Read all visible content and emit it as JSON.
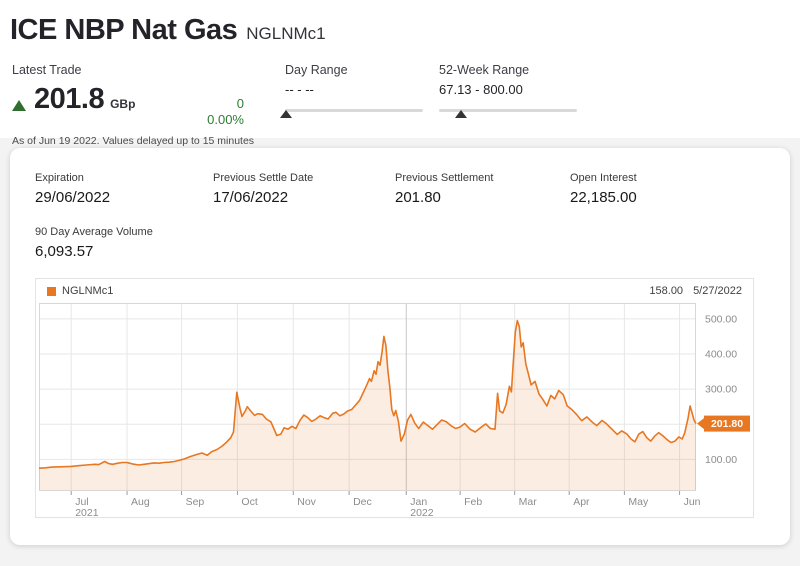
{
  "header": {
    "title": "ICE NBP Nat Gas",
    "ric": "NGLNMc1",
    "latest_trade": {
      "label": "Latest Trade",
      "direction": "up",
      "price": "201.8",
      "currency": "GBp",
      "change": "0",
      "change_pct": "0.00%",
      "as_of": "As of Jun 19 2022. Values delayed up to 15 minutes",
      "up_color": "#2e7d32"
    },
    "day_range": {
      "label": "Day Range",
      "value": "-- - --",
      "marker_pct": 1
    },
    "week52_range": {
      "label": "52-Week Range",
      "value": "67.13 - 800.00",
      "marker_pct": 16
    }
  },
  "details": {
    "fields": [
      {
        "label": "Expiration",
        "value": "29/06/2022"
      },
      {
        "label": "Previous Settle Date",
        "value": "17/06/2022"
      },
      {
        "label": "Previous Settlement",
        "value": "201.80"
      },
      {
        "label": "Open Interest",
        "value": "22,185.00"
      },
      {
        "label": "90 Day Average Volume",
        "value": "6,093.57"
      }
    ]
  },
  "chart": {
    "legend": "NGLNMc1",
    "header_value": "158.00",
    "header_date": "5/27/2022",
    "last_price_label": "201.80",
    "colors": {
      "line": "#e87722",
      "fill": "rgba(232,119,34,0.13)",
      "grid": "#e7e7e7",
      "grid_emph": "#c6c6c6",
      "axis_text": "#8c8c8c",
      "tick": "#9a9a9a",
      "plot_border": "#d8d8d8",
      "tag_bg": "#e87722",
      "tag_text": "#ffffff"
    }
  },
  "chart_data": {
    "type": "area",
    "title": "NGLNMc1 continuation price, Jun 2021 - Jun 2022",
    "ylabel": "GBp",
    "ylim": [
      10,
      545
    ],
    "grid": true,
    "legend_position": "top-left",
    "gridlines_y": [
      100,
      200,
      300,
      400,
      500
    ],
    "yticks_labeled": [
      {
        "v": 500,
        "label": "500.00"
      },
      {
        "v": 400,
        "label": "400.00"
      },
      {
        "v": 300,
        "label": "300.00"
      },
      {
        "v": 100,
        "label": "100.00"
      }
    ],
    "x_months": [
      {
        "f": 0.049,
        "label": "Jul",
        "sub": "2021"
      },
      {
        "f": 0.134,
        "label": "Aug"
      },
      {
        "f": 0.217,
        "label": "Sep"
      },
      {
        "f": 0.302,
        "label": "Oct"
      },
      {
        "f": 0.387,
        "label": "Nov"
      },
      {
        "f": 0.472,
        "label": "Dec"
      },
      {
        "f": 0.559,
        "label": "Jan",
        "sub": "2022",
        "emph": true
      },
      {
        "f": 0.641,
        "label": "Feb"
      },
      {
        "f": 0.724,
        "label": "Mar"
      },
      {
        "f": 0.807,
        "label": "Apr"
      },
      {
        "f": 0.891,
        "label": "May"
      },
      {
        "f": 0.975,
        "label": "Jun"
      }
    ],
    "last_value": 201.8,
    "series": [
      {
        "name": "NGLNMc1",
        "unit": "GBp",
        "points": [
          [
            0.0,
            75
          ],
          [
            0.01,
            76
          ],
          [
            0.02,
            78
          ],
          [
            0.033,
            79
          ],
          [
            0.049,
            80
          ],
          [
            0.06,
            82
          ],
          [
            0.072,
            84
          ],
          [
            0.085,
            86
          ],
          [
            0.091,
            85
          ],
          [
            0.1,
            94
          ],
          [
            0.106,
            88
          ],
          [
            0.112,
            86
          ],
          [
            0.12,
            89
          ],
          [
            0.127,
            91
          ],
          [
            0.134,
            91
          ],
          [
            0.142,
            87
          ],
          [
            0.152,
            84
          ],
          [
            0.16,
            86
          ],
          [
            0.168,
            88
          ],
          [
            0.175,
            90
          ],
          [
            0.183,
            89
          ],
          [
            0.19,
            91
          ],
          [
            0.198,
            92
          ],
          [
            0.206,
            94
          ],
          [
            0.213,
            97
          ],
          [
            0.221,
            101
          ],
          [
            0.23,
            108
          ],
          [
            0.24,
            114
          ],
          [
            0.248,
            118
          ],
          [
            0.256,
            112
          ],
          [
            0.263,
            122
          ],
          [
            0.271,
            128
          ],
          [
            0.279,
            138
          ],
          [
            0.286,
            150
          ],
          [
            0.292,
            162
          ],
          [
            0.296,
            178
          ],
          [
            0.301,
            291
          ],
          [
            0.306,
            245
          ],
          [
            0.309,
            222
          ],
          [
            0.314,
            238
          ],
          [
            0.317,
            250
          ],
          [
            0.322,
            238
          ],
          [
            0.328,
            225
          ],
          [
            0.333,
            230
          ],
          [
            0.34,
            228
          ],
          [
            0.346,
            215
          ],
          [
            0.353,
            207
          ],
          [
            0.358,
            185
          ],
          [
            0.362,
            168
          ],
          [
            0.368,
            172
          ],
          [
            0.373,
            190
          ],
          [
            0.379,
            186
          ],
          [
            0.385,
            194
          ],
          [
            0.391,
            188
          ],
          [
            0.397,
            210
          ],
          [
            0.403,
            226
          ],
          [
            0.409,
            219
          ],
          [
            0.415,
            208
          ],
          [
            0.421,
            214
          ],
          [
            0.428,
            224
          ],
          [
            0.434,
            219
          ],
          [
            0.44,
            215
          ],
          [
            0.447,
            231
          ],
          [
            0.452,
            234
          ],
          [
            0.458,
            224
          ],
          [
            0.464,
            229
          ],
          [
            0.47,
            238
          ],
          [
            0.476,
            242
          ],
          [
            0.482,
            255
          ],
          [
            0.488,
            268
          ],
          [
            0.494,
            292
          ],
          [
            0.499,
            312
          ],
          [
            0.503,
            330
          ],
          [
            0.506,
            322
          ],
          [
            0.51,
            352
          ],
          [
            0.513,
            342
          ],
          [
            0.516,
            378
          ],
          [
            0.519,
            368
          ],
          [
            0.522,
            404
          ],
          [
            0.525,
            450
          ],
          [
            0.528,
            424
          ],
          [
            0.531,
            352
          ],
          [
            0.534,
            306
          ],
          [
            0.537,
            242
          ],
          [
            0.54,
            224
          ],
          [
            0.543,
            239
          ],
          [
            0.547,
            208
          ],
          [
            0.551,
            152
          ],
          [
            0.556,
            172
          ],
          [
            0.561,
            212
          ],
          [
            0.566,
            228
          ],
          [
            0.572,
            203
          ],
          [
            0.578,
            188
          ],
          [
            0.585,
            206
          ],
          [
            0.592,
            196
          ],
          [
            0.599,
            186
          ],
          [
            0.606,
            199
          ],
          [
            0.613,
            212
          ],
          [
            0.62,
            207
          ],
          [
            0.627,
            196
          ],
          [
            0.634,
            188
          ],
          [
            0.641,
            192
          ],
          [
            0.648,
            202
          ],
          [
            0.656,
            186
          ],
          [
            0.664,
            178
          ],
          [
            0.672,
            190
          ],
          [
            0.68,
            201
          ],
          [
            0.687,
            188
          ],
          [
            0.694,
            186
          ],
          [
            0.698,
            288
          ],
          [
            0.701,
            238
          ],
          [
            0.706,
            232
          ],
          [
            0.711,
            256
          ],
          [
            0.716,
            308
          ],
          [
            0.719,
            292
          ],
          [
            0.722,
            382
          ],
          [
            0.725,
            462
          ],
          [
            0.728,
            495
          ],
          [
            0.731,
            478
          ],
          [
            0.734,
            420
          ],
          [
            0.737,
            432
          ],
          [
            0.741,
            372
          ],
          [
            0.745,
            342
          ],
          [
            0.749,
            312
          ],
          [
            0.755,
            322
          ],
          [
            0.761,
            286
          ],
          [
            0.767,
            270
          ],
          [
            0.773,
            252
          ],
          [
            0.779,
            282
          ],
          [
            0.785,
            272
          ],
          [
            0.791,
            296
          ],
          [
            0.798,
            284
          ],
          [
            0.804,
            252
          ],
          [
            0.811,
            242
          ],
          [
            0.819,
            226
          ],
          [
            0.826,
            210
          ],
          [
            0.834,
            221
          ],
          [
            0.842,
            206
          ],
          [
            0.849,
            196
          ],
          [
            0.857,
            211
          ],
          [
            0.864,
            201
          ],
          [
            0.872,
            186
          ],
          [
            0.88,
            171
          ],
          [
            0.887,
            181
          ],
          [
            0.895,
            172
          ],
          [
            0.901,
            158
          ],
          [
            0.907,
            150
          ],
          [
            0.913,
            172
          ],
          [
            0.919,
            179
          ],
          [
            0.925,
            162
          ],
          [
            0.931,
            152
          ],
          [
            0.937,
            166
          ],
          [
            0.943,
            176
          ],
          [
            0.949,
            168
          ],
          [
            0.956,
            156
          ],
          [
            0.962,
            148
          ],
          [
            0.968,
            152
          ],
          [
            0.974,
            164
          ],
          [
            0.979,
            158
          ],
          [
            0.983,
            176
          ],
          [
            0.988,
            218
          ],
          [
            0.991,
            252
          ],
          [
            0.994,
            232
          ],
          [
            0.997,
            212
          ],
          [
            1.0,
            201.8
          ]
        ]
      }
    ]
  }
}
